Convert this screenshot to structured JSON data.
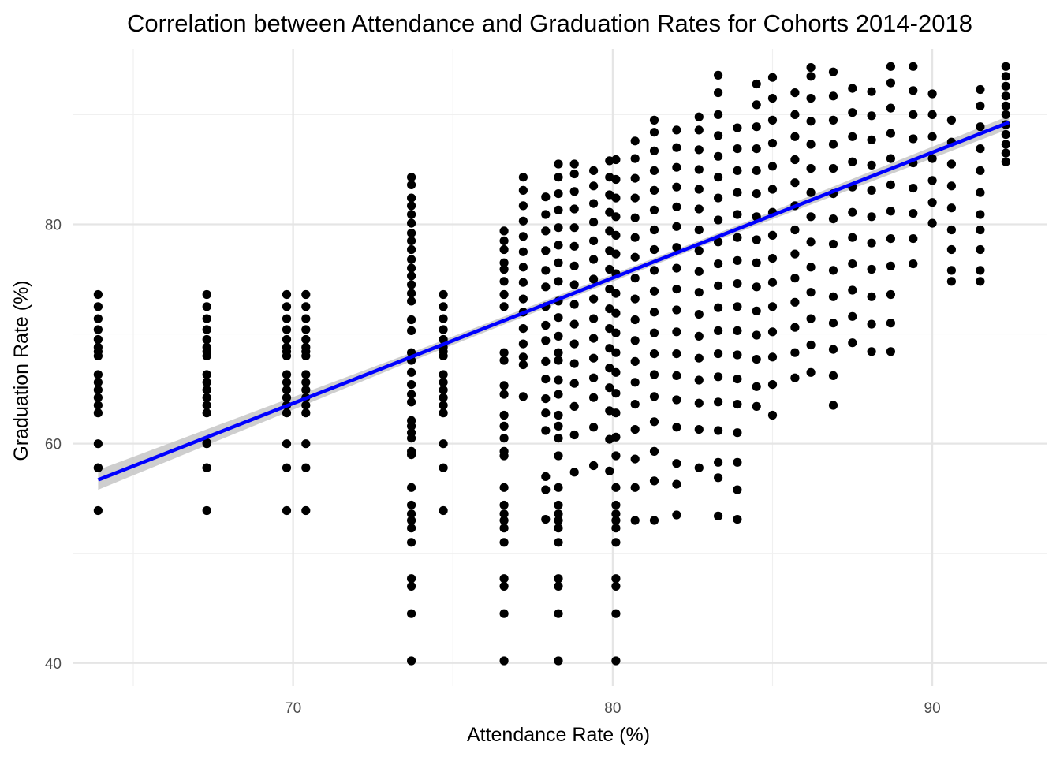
{
  "chart_data": {
    "type": "scatter",
    "title": "Correlation between Attendance and Graduation Rates for Cohorts 2014-2018",
    "xlabel": "Attendance Rate (%)",
    "ylabel": "Graduation Rate (%)",
    "xlim": [
      63.1,
      93.6
    ],
    "ylim": [
      37.9,
      96.0
    ],
    "x_ticks": [
      70,
      80,
      90
    ],
    "x_tick_labels": [
      "70",
      "80",
      "90"
    ],
    "y_ticks": [
      40,
      60,
      80
    ],
    "y_tick_labels": [
      "40",
      "60",
      "80"
    ],
    "grid": true,
    "legend": "none",
    "colors": {
      "points": "#000000",
      "trend_line": "#0000ff",
      "confidence_band": "#bdbdbd",
      "grid": "#e5e5e5",
      "tick_text": "#4d4d4d"
    },
    "trend_line": {
      "method": "linear",
      "start": [
        63.9,
        56.7
      ],
      "end": [
        92.4,
        89.3
      ],
      "confidence_band_halfwidth": [
        0.9,
        0.4,
        0.3,
        0.6
      ]
    },
    "columns": [
      {
        "x": 63.9,
        "y": [
          53.9,
          57.8,
          57.8,
          60.0,
          62.8,
          63.5,
          64.2,
          64.9,
          65.6,
          66.3,
          68.0,
          68.4,
          68.8,
          69.5,
          70.4,
          71.4,
          72.5,
          73.6
        ]
      },
      {
        "x": 67.3,
        "y": [
          53.9,
          57.8,
          57.8,
          60.0,
          60.1,
          62.8,
          63.5,
          64.2,
          64.9,
          65.6,
          66.3,
          68.0,
          68.4,
          68.8,
          69.5,
          70.4,
          71.4,
          72.5,
          73.6
        ]
      },
      {
        "x": 69.8,
        "y": [
          53.9,
          57.8,
          60.0,
          62.8,
          63.5,
          64.2,
          64.9,
          65.6,
          66.3,
          68.0,
          68.4,
          68.8,
          69.5,
          70.4,
          71.4,
          72.5,
          73.6
        ]
      },
      {
        "x": 70.4,
        "y": [
          53.9,
          57.8,
          60.0,
          62.8,
          63.5,
          64.2,
          64.9,
          65.6,
          66.3,
          68.0,
          68.4,
          68.8,
          69.5,
          70.4,
          71.4,
          72.5,
          73.6
        ]
      },
      {
        "x": 73.7,
        "y": [
          40.2,
          44.5,
          47.0,
          47.7,
          51.0,
          52.3,
          53.0,
          53.6,
          54.4,
          56.0,
          59.0,
          59.3,
          60.5,
          61.0,
          61.6,
          62.1,
          63.8,
          64.5,
          65.4,
          66.5,
          67.6,
          68.3,
          70.3,
          71.3,
          73.0,
          73.7,
          74.5,
          75.3,
          76.0,
          76.8,
          77.7,
          78.5,
          79.2,
          80.1,
          80.9,
          81.7,
          82.4,
          83.6,
          84.3
        ]
      },
      {
        "x": 74.7,
        "y": [
          53.9,
          57.8,
          60.0,
          62.8,
          63.5,
          64.2,
          64.9,
          65.6,
          66.3,
          68.0,
          68.4,
          68.8,
          69.5,
          70.4,
          71.4,
          72.5,
          73.6
        ]
      },
      {
        "x": 76.6,
        "y": [
          40.2,
          44.5,
          47.0,
          47.7,
          51.0,
          52.3,
          53.0,
          53.6,
          54.4,
          56.0,
          58.9,
          59.3,
          60.5,
          61.6,
          62.6,
          64.5,
          65.3,
          67.6,
          68.3,
          72.5,
          73.6,
          74.8,
          75.9,
          76.5,
          77.7,
          78.5,
          79.4
        ]
      },
      {
        "x": 77.2,
        "y": [
          64.3,
          67.2,
          67.9,
          69.1,
          70.5,
          72.0,
          73.2,
          74.7,
          76.1,
          77.5,
          78.9,
          80.3,
          81.7,
          83.1,
          84.3
        ]
      },
      {
        "x": 77.9,
        "y": [
          53.1,
          55.8,
          57.0,
          61.2,
          62.8,
          64.1,
          65.9,
          67.5,
          69.4,
          70.8,
          72.5,
          74.3,
          75.8,
          77.6,
          79.4,
          80.9,
          82.5
        ]
      },
      {
        "x": 78.3,
        "y": [
          40.2,
          44.5,
          47.0,
          47.7,
          51.0,
          52.3,
          53.0,
          53.6,
          54.4,
          56.0,
          58.9,
          60.5,
          61.6,
          62.6,
          64.5,
          65.8,
          67.6,
          68.3,
          69.8,
          71.5,
          73.0,
          74.8,
          76.5,
          78.1,
          79.7,
          81.3,
          82.8,
          84.3,
          85.5
        ]
      },
      {
        "x": 78.8,
        "y": [
          57.4,
          60.8,
          63.4,
          65.5,
          67.3,
          69.1,
          70.9,
          72.7,
          74.5,
          76.2,
          78.0,
          79.7,
          81.4,
          83.0,
          84.6,
          85.5
        ]
      },
      {
        "x": 79.4,
        "y": [
          58.0,
          61.5,
          64.2,
          66.0,
          67.8,
          69.6,
          71.4,
          73.2,
          75.0,
          76.8,
          78.5,
          80.2,
          81.9,
          83.5,
          84.9
        ]
      },
      {
        "x": 79.9,
        "y": [
          57.5,
          60.4,
          63.0,
          65.1,
          66.9,
          68.7,
          70.5,
          72.3,
          74.1,
          75.9,
          77.6,
          79.4,
          81.1,
          82.7,
          84.3,
          85.8
        ]
      },
      {
        "x": 80.1,
        "y": [
          40.2,
          44.5,
          47.0,
          47.7,
          51.0,
          52.3,
          53.0,
          53.6,
          54.4,
          56.0,
          58.9,
          60.6,
          62.8,
          64.6,
          66.5,
          68.3,
          70.1,
          71.9,
          73.7,
          75.5,
          77.3,
          79.0,
          80.7,
          82.4,
          84.1,
          85.9
        ]
      },
      {
        "x": 80.7,
        "y": [
          53.0,
          56.0,
          58.6,
          61.3,
          63.6,
          65.6,
          67.5,
          69.4,
          71.3,
          73.2,
          75.1,
          77.0,
          78.8,
          80.6,
          82.4,
          84.2,
          86.0,
          87.6
        ]
      },
      {
        "x": 81.3,
        "y": [
          53.0,
          56.6,
          59.3,
          62.0,
          64.3,
          66.3,
          68.2,
          70.1,
          72.0,
          73.9,
          75.8,
          77.7,
          79.5,
          81.3,
          83.1,
          84.9,
          86.7,
          88.4,
          89.5
        ]
      },
      {
        "x": 82.0,
        "y": [
          53.5,
          56.3,
          58.2,
          61.5,
          64.0,
          66.2,
          68.2,
          70.2,
          72.2,
          74.1,
          76.0,
          77.9,
          79.8,
          81.6,
          83.4,
          85.2,
          87.0,
          88.6
        ]
      },
      {
        "x": 82.7,
        "y": [
          57.8,
          61.3,
          63.7,
          65.8,
          67.8,
          69.8,
          71.8,
          73.8,
          75.7,
          77.6,
          79.5,
          81.4,
          83.2,
          85.0,
          86.8,
          88.6,
          89.8
        ]
      },
      {
        "x": 83.3,
        "y": [
          53.4,
          56.9,
          58.3,
          61.2,
          63.8,
          66.1,
          68.2,
          70.3,
          72.4,
          74.4,
          76.4,
          78.4,
          80.4,
          82.4,
          84.3,
          86.2,
          88.1,
          90.0,
          92.0,
          93.6
        ]
      },
      {
        "x": 83.9,
        "y": [
          53.1,
          55.8,
          58.3,
          61.0,
          63.6,
          65.9,
          68.1,
          70.3,
          72.5,
          74.6,
          76.7,
          78.8,
          80.9,
          82.9,
          84.9,
          86.9,
          88.8
        ]
      },
      {
        "x": 84.5,
        "y": [
          63.4,
          65.2,
          67.7,
          69.9,
          72.1,
          74.3,
          76.5,
          78.6,
          80.7,
          82.8,
          84.9,
          86.9,
          88.9,
          90.9,
          92.8
        ]
      },
      {
        "x": 85.0,
        "y": [
          62.6,
          65.4,
          67.9,
          70.2,
          72.5,
          74.7,
          76.9,
          79.0,
          81.1,
          83.2,
          85.3,
          87.4,
          89.5,
          91.5,
          93.4
        ]
      },
      {
        "x": 85.7,
        "y": [
          66.0,
          68.3,
          70.6,
          72.9,
          75.1,
          77.3,
          79.5,
          81.7,
          83.8,
          85.9,
          88.0,
          90.0,
          92.0
        ]
      },
      {
        "x": 86.2,
        "y": [
          66.5,
          69.0,
          71.4,
          73.8,
          76.1,
          78.4,
          80.7,
          82.9,
          85.1,
          87.3,
          89.4,
          91.5,
          93.5,
          94.3
        ]
      },
      {
        "x": 86.9,
        "y": [
          63.5,
          66.2,
          68.6,
          71.0,
          73.4,
          75.8,
          78.2,
          80.5,
          82.8,
          85.1,
          87.3,
          89.5,
          91.7,
          93.9
        ]
      },
      {
        "x": 87.5,
        "y": [
          69.2,
          71.6,
          74.0,
          76.4,
          78.8,
          81.1,
          83.4,
          85.7,
          88.0,
          90.2,
          92.4
        ]
      },
      {
        "x": 88.1,
        "y": [
          68.4,
          70.9,
          73.4,
          75.9,
          78.3,
          80.7,
          83.1,
          85.4,
          87.7,
          89.9,
          92.1
        ]
      },
      {
        "x": 88.7,
        "y": [
          68.4,
          71.0,
          73.6,
          76.2,
          78.7,
          81.2,
          83.6,
          86.0,
          88.3,
          90.6,
          92.9,
          94.4
        ]
      },
      {
        "x": 89.4,
        "y": [
          76.4,
          78.7,
          81.0,
          83.3,
          85.6,
          87.8,
          90.0,
          92.2,
          94.4
        ]
      },
      {
        "x": 90.0,
        "y": [
          80.1,
          82.0,
          84.0,
          86.0,
          88.0,
          90.0,
          91.9
        ]
      },
      {
        "x": 90.6,
        "y": [
          74.8,
          75.8,
          77.7,
          79.5,
          81.5,
          83.5,
          85.5,
          87.5,
          89.5
        ]
      },
      {
        "x": 91.5,
        "y": [
          74.8,
          75.8,
          77.7,
          79.5,
          80.9,
          82.9,
          84.9,
          86.9,
          88.9,
          90.8,
          92.3
        ]
      },
      {
        "x": 92.3,
        "y": [
          85.7,
          86.5,
          87.3,
          88.2,
          89.1,
          90.0,
          90.8,
          91.7,
          92.6,
          93.5,
          94.4
        ]
      }
    ]
  }
}
